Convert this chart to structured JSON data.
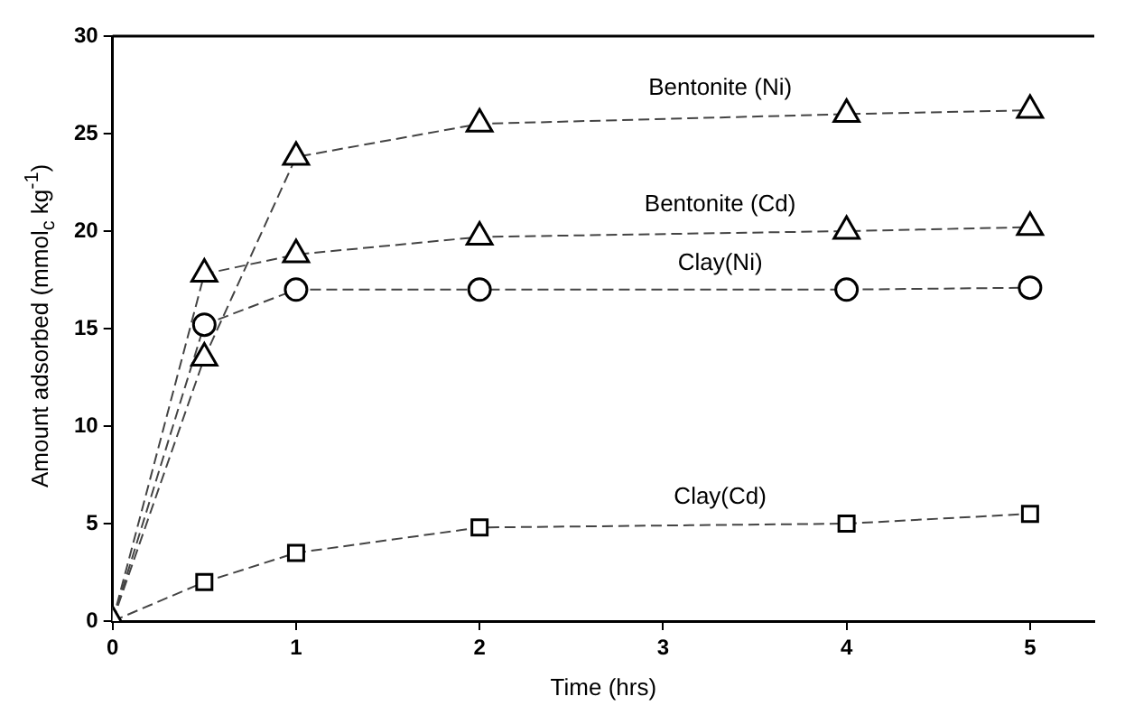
{
  "chart_data": {
    "type": "line",
    "xlabel": "Time (hrs)",
    "ylabel": "Amount adsorbed (mmol$_{c}$ kg$^{-1}$)",
    "xlim": [
      0,
      5.35
    ],
    "xticks": [
      0,
      1,
      2,
      3,
      4,
      5
    ],
    "ylim": [
      0,
      30
    ],
    "yticks": [
      0,
      5,
      10,
      15,
      20,
      25,
      30
    ],
    "grid": false,
    "legend": false,
    "line_style": "dashed",
    "series": [
      {
        "name": "Bentonite (Ni)",
        "color": "#444444",
        "marker": "triangle",
        "x": [
          0,
          0.5,
          1,
          2,
          4,
          5
        ],
        "values": [
          0,
          13.5,
          23.8,
          25.5,
          26,
          26.2
        ]
      },
      {
        "name": "Bentonite (Cd)",
        "color": "#444444",
        "marker": "triangle",
        "x": [
          0,
          0.5,
          1,
          2,
          4,
          5
        ],
        "values": [
          0,
          17.8,
          18.8,
          19.7,
          20,
          20.2
        ]
      },
      {
        "name": "Clay(Ni)",
        "color": "#444444",
        "marker": "circle",
        "x": [
          0,
          0.5,
          1,
          2,
          4,
          5
        ],
        "values": [
          0,
          15.2,
          17,
          17,
          17,
          17.1
        ]
      },
      {
        "name": "Clay(Cd)",
        "color": "#444444",
        "marker": "square",
        "x": [
          0,
          0.5,
          1,
          2,
          4,
          5
        ],
        "values": [
          0,
          2,
          3.5,
          4.8,
          5,
          5.5
        ]
      }
    ]
  }
}
